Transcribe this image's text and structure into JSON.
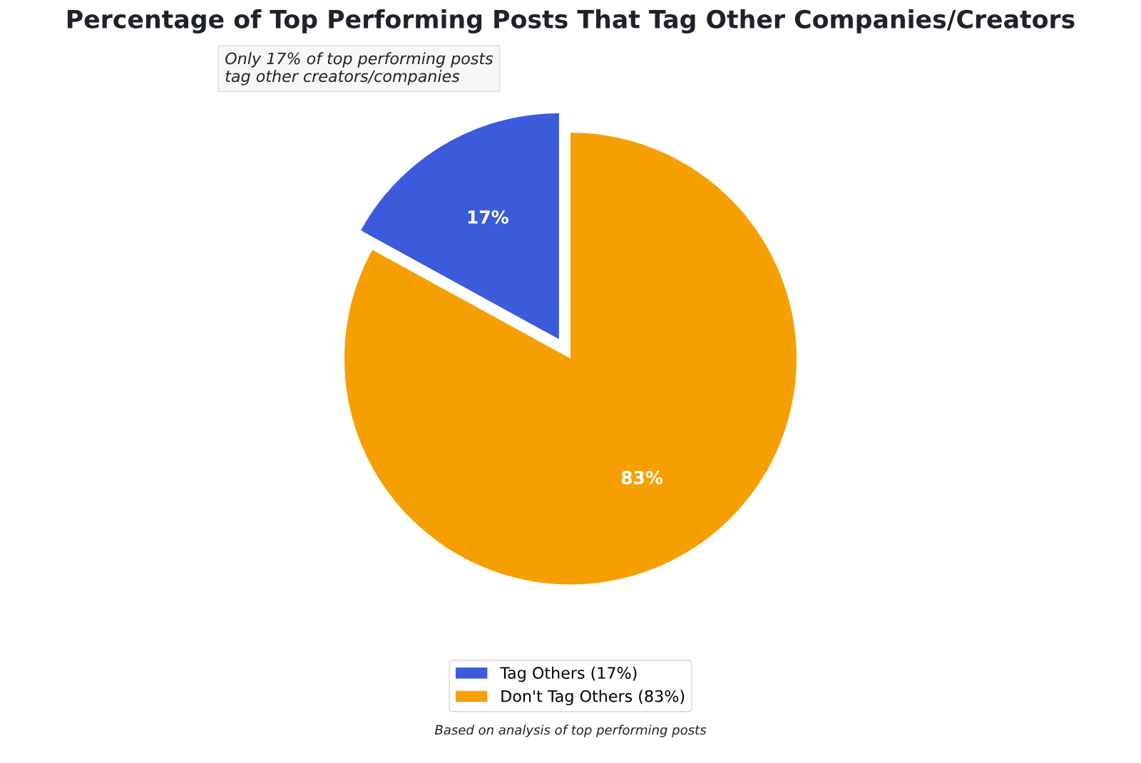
{
  "chart_data": {
    "type": "pie",
    "title": "Percentage of Top Performing Posts That Tag Other Companies/Creators",
    "categories": [
      "Tag Others (17%)",
      "Don't Tag Others (83%)"
    ],
    "values": [
      17,
      83
    ],
    "colors": [
      "#3b5bdb",
      "#f5a000"
    ],
    "value_labels": [
      "17%",
      "83%"
    ],
    "legend": "bottom",
    "annotations": [
      "Only 17% of top performing posts\ntag other creators/companies",
      "Based on analysis of top performing posts"
    ]
  }
}
